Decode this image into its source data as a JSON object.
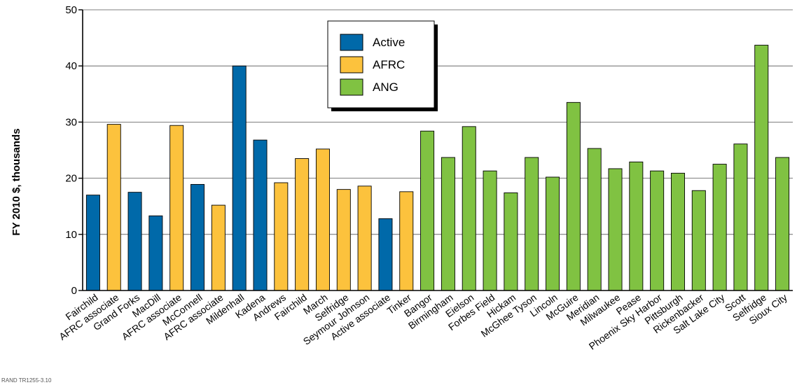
{
  "chart_data": {
    "type": "bar",
    "title": "",
    "xlabel": "",
    "ylabel": "FY 2010 $, thousands",
    "ylim": [
      0,
      50
    ],
    "yticks": [
      0,
      10,
      20,
      30,
      40,
      50
    ],
    "grid": true,
    "legend_position": "top-center",
    "series": [
      {
        "name": "Active",
        "color": "#0069a9"
      },
      {
        "name": "AFRC",
        "color": "#fcc23d"
      },
      {
        "name": "ANG",
        "color": "#80c242"
      }
    ],
    "bars": [
      {
        "label": "Fairchild",
        "value": 17.0,
        "series": "Active"
      },
      {
        "label": "AFRC associate",
        "value": 29.6,
        "series": "AFRC"
      },
      {
        "label": "Grand Forks",
        "value": 17.5,
        "series": "Active"
      },
      {
        "label": "MacDill",
        "value": 13.3,
        "series": "Active"
      },
      {
        "label": "AFRC associate",
        "value": 29.4,
        "series": "AFRC"
      },
      {
        "label": "McConnell",
        "value": 18.9,
        "series": "Active"
      },
      {
        "label": "AFRC associate",
        "value": 15.2,
        "series": "AFRC"
      },
      {
        "label": "Mildenhall",
        "value": 40.0,
        "series": "Active"
      },
      {
        "label": "Kadena",
        "value": 26.8,
        "series": "Active"
      },
      {
        "label": "Andrews",
        "value": 19.2,
        "series": "AFRC"
      },
      {
        "label": "Fairchild",
        "value": 23.5,
        "series": "AFRC"
      },
      {
        "label": "March",
        "value": 25.2,
        "series": "AFRC"
      },
      {
        "label": "Selfridge",
        "value": 18.0,
        "series": "AFRC"
      },
      {
        "label": "Seymour Johnson",
        "value": 18.6,
        "series": "AFRC"
      },
      {
        "label": "Active associate",
        "value": 12.8,
        "series": "Active"
      },
      {
        "label": "Tinker",
        "value": 17.6,
        "series": "AFRC"
      },
      {
        "label": "Bangor",
        "value": 28.4,
        "series": "ANG"
      },
      {
        "label": "Birmingham",
        "value": 23.7,
        "series": "ANG"
      },
      {
        "label": "Eielson",
        "value": 29.2,
        "series": "ANG"
      },
      {
        "label": "Forbes Field",
        "value": 21.3,
        "series": "ANG"
      },
      {
        "label": "Hickam",
        "value": 17.4,
        "series": "ANG"
      },
      {
        "label": "McGhee Tyson",
        "value": 23.7,
        "series": "ANG"
      },
      {
        "label": "Lincoln",
        "value": 20.2,
        "series": "ANG"
      },
      {
        "label": "McGuire",
        "value": 33.5,
        "series": "ANG"
      },
      {
        "label": "Meridian",
        "value": 25.3,
        "series": "ANG"
      },
      {
        "label": "Milwaukee",
        "value": 21.7,
        "series": "ANG"
      },
      {
        "label": "Pease",
        "value": 22.9,
        "series": "ANG"
      },
      {
        "label": "Phoenix Sky Harbor",
        "value": 21.3,
        "series": "ANG"
      },
      {
        "label": "Pittsburgh",
        "value": 20.9,
        "series": "ANG"
      },
      {
        "label": "Rickenbacker",
        "value": 17.8,
        "series": "ANG"
      },
      {
        "label": "Salt Lake City",
        "value": 22.5,
        "series": "ANG"
      },
      {
        "label": "Scott",
        "value": 26.1,
        "series": "ANG"
      },
      {
        "label": "Selfridge",
        "value": 43.7,
        "series": "ANG"
      },
      {
        "label": "Sioux City",
        "value": 23.7,
        "series": "ANG"
      }
    ]
  },
  "footer": {
    "id": "RAND TR1255-3.10"
  }
}
